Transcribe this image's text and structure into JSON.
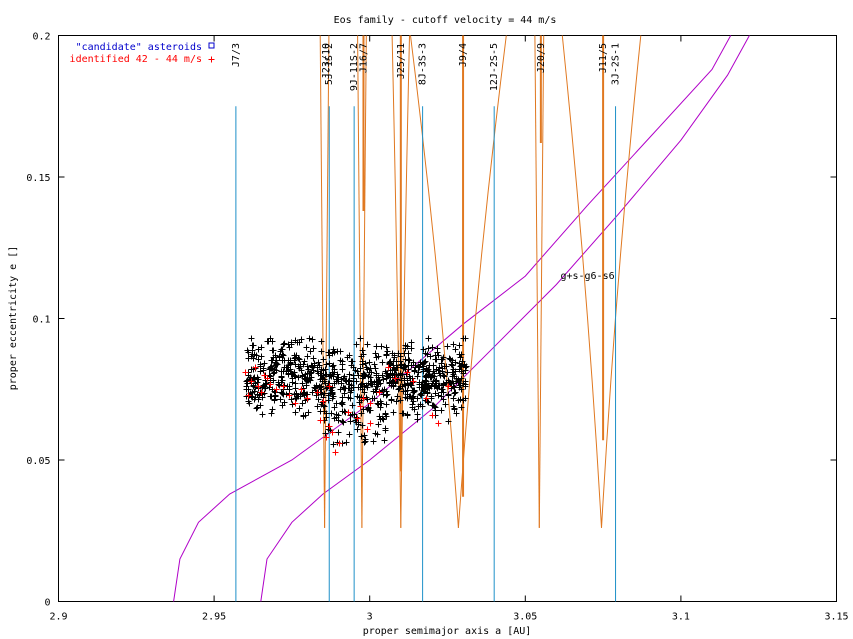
{
  "chart_data": {
    "type": "scatter",
    "title": "Eos family - cutoff velocity = 44 m/s",
    "xlabel": "proper semimajor axis a [AU]",
    "ylabel": "proper eccentricity e []",
    "xlim": [
      2.9,
      3.15
    ],
    "ylim": [
      0,
      0.2
    ],
    "xticks": [
      "2.9",
      "2.95",
      "3",
      "3.05",
      "3.1",
      "3.15"
    ],
    "yticks": [
      "0",
      "0.05",
      "0.1",
      "0.15",
      "0.2"
    ],
    "legend": {
      "placement": "top-left",
      "entries": [
        {
          "label": "\"candidate\" asteroids",
          "color": "#0000cc",
          "marker": "square"
        },
        {
          "label": "identified 42 - 44 m/s",
          "color": "#ff0000",
          "marker": "plus"
        }
      ]
    },
    "colors": {
      "members": "#000000",
      "identified": "#ff0000",
      "resonance_lines": "#1e90c8",
      "resonance_widths": "#e07820",
      "secular_resonance": "#b000c8"
    },
    "series": [
      {
        "name": "identified 42 - 44 m/s",
        "color": "#ff0000",
        "points": [
          [
            2.96,
            0.081
          ],
          [
            2.962,
            0.078
          ],
          [
            2.964,
            0.076
          ],
          [
            2.966,
            0.08
          ],
          [
            2.968,
            0.077
          ],
          [
            2.97,
            0.075
          ],
          [
            2.961,
            0.073
          ],
          [
            2.963,
            0.083
          ],
          [
            2.965,
            0.074
          ],
          [
            2.967,
            0.079
          ],
          [
            2.972,
            0.076
          ],
          [
            2.974,
            0.073
          ],
          [
            2.976,
            0.07
          ],
          [
            2.978,
            0.075
          ],
          [
            2.98,
            0.072
          ],
          [
            2.983,
            0.074
          ],
          [
            2.985,
            0.071
          ],
          [
            2.987,
            0.076
          ],
          [
            2.986,
            0.058
          ],
          [
            2.988,
            0.06
          ],
          [
            2.99,
            0.056
          ],
          [
            2.987,
            0.062
          ],
          [
            2.984,
            0.064
          ],
          [
            2.989,
            0.053
          ],
          [
            2.993,
            0.067
          ],
          [
            2.996,
            0.065
          ],
          [
            2.998,
            0.072
          ],
          [
            2.997,
            0.069
          ],
          [
            3.0,
            0.07
          ],
          [
            2.999,
            0.061
          ],
          [
            3.003,
            0.074
          ],
          [
            3.008,
            0.079
          ],
          [
            3.012,
            0.081
          ],
          [
            3.014,
            0.078
          ],
          [
            3.006,
            0.083
          ],
          [
            3.02,
            0.066
          ],
          [
            3.022,
            0.063
          ],
          [
            3.018,
            0.072
          ],
          [
            3.025,
            0.076
          ],
          [
            3.0,
            0.063
          ]
        ]
      },
      {
        "name": "members",
        "color": "#000000",
        "generated_count": 900,
        "a_range": [
          2.96,
          3.031
        ],
        "e_range": [
          0.052,
          0.093
        ]
      }
    ],
    "resonances": [
      {
        "label": "J7/3",
        "a": 2.957,
        "top": 0.175,
        "width": null
      },
      {
        "label": "5J-1S-2",
        "a": 2.987,
        "top": 0.175,
        "width": {
          "a_low": 2.985,
          "a_high": 2.986,
          "e_min": 0.026
        }
      },
      {
        "label": "J23/10",
        "a": 2.986,
        "top": null,
        "width": null
      },
      {
        "label": "9J-11S-2",
        "a": 2.995,
        "top": 0.175,
        "width": null
      },
      {
        "label": "J16/7",
        "a": 2.998,
        "top": null,
        "width": {
          "a_low": 2.997,
          "a_high": 2.998,
          "e_min": 0.026,
          "tip_e": 0.138
        }
      },
      {
        "label": "J25/11",
        "a": 3.01,
        "top": null,
        "width": {
          "a_low": 3.009,
          "a_high": 3.011,
          "e_min": 0.026,
          "tip_e": 0.046
        }
      },
      {
        "label": "8J-3S-3",
        "a": 3.017,
        "top": 0.175,
        "width": null
      },
      {
        "label": "J9/4",
        "a": 3.03,
        "top": null,
        "width": {
          "a_low": 3.023,
          "a_high": 3.034,
          "e_min": 0.026,
          "tip_e": 0.037
        }
      },
      {
        "label": "12J-2S-5",
        "a": 3.04,
        "top": 0.175,
        "width": null
      },
      {
        "label": "J20/9",
        "a": 3.055,
        "top": null,
        "width": {
          "a_low": 3.054,
          "a_high": 3.055,
          "e_min": 0.026,
          "tip_e": 0.162
        }
      },
      {
        "label": "J11/5",
        "a": 3.075,
        "top": null,
        "width": {
          "a_low": 3.07,
          "a_high": 3.079,
          "e_min": 0.026,
          "tip_e": 0.057
        }
      },
      {
        "label": "3J-2S-1",
        "a": 3.079,
        "top": 0.175,
        "width": null
      }
    ],
    "secular_resonance": {
      "label": "g+s-g6-s6",
      "label_pos": [
        3.07,
        0.114
      ],
      "curves": [
        [
          [
            2.937,
            0.0
          ],
          [
            2.939,
            0.015
          ],
          [
            2.945,
            0.028
          ],
          [
            2.955,
            0.038
          ],
          [
            2.975,
            0.05
          ],
          [
            3.0,
            0.07
          ],
          [
            3.03,
            0.098
          ],
          [
            3.05,
            0.115
          ],
          [
            3.07,
            0.14
          ],
          [
            3.09,
            0.164
          ],
          [
            3.11,
            0.188
          ],
          [
            3.116,
            0.2
          ]
        ],
        [
          [
            2.965,
            0.0
          ],
          [
            2.967,
            0.015
          ],
          [
            2.975,
            0.028
          ],
          [
            2.985,
            0.038
          ],
          [
            3.0,
            0.05
          ],
          [
            3.02,
            0.068
          ],
          [
            3.04,
            0.09
          ],
          [
            3.06,
            0.112
          ],
          [
            3.08,
            0.137
          ],
          [
            3.1,
            0.163
          ],
          [
            3.115,
            0.186
          ],
          [
            3.122,
            0.2
          ]
        ]
      ]
    }
  }
}
